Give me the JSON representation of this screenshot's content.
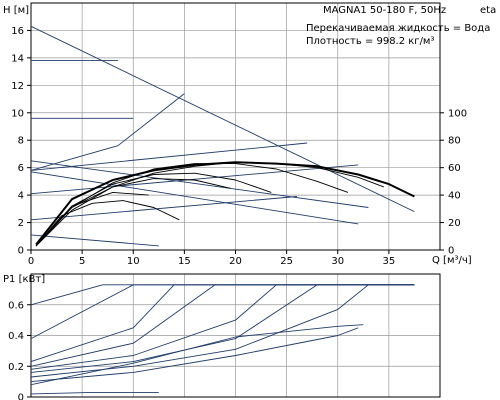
{
  "chart_data": [
    {
      "type": "line",
      "title": "MAGNA1 50-180 F, 50Hz",
      "info": [
        "Перекачиваемая жидкость = Вода",
        "Плотность = 998.2 кг/м³"
      ],
      "xlabel": "Q [м³/ч]",
      "ylabel_left": "H [м]",
      "ylabel_right": "eta [%]",
      "xlim": [
        0,
        40
      ],
      "ylim": [
        0,
        18
      ],
      "ylim_right": [
        0,
        180
      ],
      "xticks": [
        0,
        5,
        10,
        15,
        20,
        25,
        30,
        35
      ],
      "yticks": [
        0,
        2,
        4,
        6,
        8,
        10,
        12,
        14,
        16
      ],
      "yticks_right": [
        0,
        20,
        40,
        60,
        80,
        100
      ],
      "grid": true,
      "colors": {
        "curve": "#1f3d6b",
        "efficiency": "#000000",
        "grid": "#9a9a9a"
      },
      "series": [
        {
          "x": [
            0,
            37.5
          ],
          "y": [
            16.3,
            2.8
          ]
        },
        {
          "x": [
            0,
            8.5
          ],
          "y": [
            13.8,
            13.8
          ]
        },
        {
          "x": [
            0,
            10
          ],
          "y": [
            9.6,
            9.6
          ]
        },
        {
          "x": [
            0,
            33
          ],
          "y": [
            6.5,
            3.1
          ]
        },
        {
          "x": [
            0,
            32
          ],
          "y": [
            5.7,
            1.9
          ]
        },
        {
          "x": [
            0,
            12.5
          ],
          "y": [
            1.1,
            0.3
          ]
        },
        {
          "x": [
            0,
            26
          ],
          "y": [
            2.2,
            3.9
          ]
        },
        {
          "x": [
            0,
            32
          ],
          "y": [
            4.1,
            6.2
          ]
        },
        {
          "x": [
            0,
            27
          ],
          "y": [
            5.8,
            7.8
          ]
        },
        {
          "x": [
            0,
            8.5,
            15
          ],
          "y": [
            5.8,
            7.6,
            11.4
          ]
        },
        {
          "x": [
            0.5,
            4,
            8,
            12,
            16,
            20,
            24,
            28,
            32,
            34.5
          ],
          "y": [
            0.3,
            2.9,
            4.6,
            5.6,
            6.1,
            6.4,
            6.3,
            6.0,
            5.3,
            4.6
          ]
        },
        {
          "x": [
            0.5,
            3,
            6,
            9,
            12,
            14.5
          ],
          "y": [
            0.3,
            2.5,
            3.4,
            3.6,
            3.1,
            2.2
          ]
        },
        {
          "x": [
            0.5,
            4,
            8,
            12,
            16,
            20,
            24,
            28,
            31
          ],
          "y": [
            0.3,
            3.1,
            4.9,
            5.9,
            6.3,
            6.3,
            5.9,
            5.0,
            4.2
          ]
        },
        {
          "x": [
            0.5,
            4,
            8,
            12,
            16,
            19.5
          ],
          "y": [
            0.3,
            3.1,
            4.6,
            5.2,
            5.1,
            4.5
          ]
        },
        {
          "x": [
            0.5,
            4,
            8,
            11.5
          ],
          "y": [
            0.3,
            3.2,
            4.2,
            4.0
          ]
        },
        {
          "x": [
            0.5,
            4,
            8,
            12,
            16,
            20,
            23.5
          ],
          "y": [
            0.3,
            3.2,
            4.8,
            5.5,
            5.6,
            5.1,
            4.2
          ]
        }
      ],
      "series_bold": [
        {
          "x": [
            0.5,
            4,
            8,
            12,
            16,
            20,
            24,
            28,
            32,
            35,
            37.5
          ],
          "y": [
            0.4,
            3.7,
            5.1,
            5.8,
            6.2,
            6.4,
            6.3,
            6.1,
            5.5,
            4.8,
            3.9
          ]
        }
      ]
    },
    {
      "type": "line",
      "ylabel": "P1 [кВт]",
      "xlim": [
        0,
        40
      ],
      "ylim": [
        0,
        0.8
      ],
      "yticks": [
        0,
        0.2,
        0.4,
        0.6
      ],
      "grid": true,
      "series": [
        {
          "x": [
            0,
            7,
            37.5
          ],
          "y": [
            0.6,
            0.73,
            0.73
          ]
        },
        {
          "x": [
            0,
            10,
            37.5
          ],
          "y": [
            0.38,
            0.73,
            0.73
          ]
        },
        {
          "x": [
            0,
            10,
            14,
            37.5
          ],
          "y": [
            0.23,
            0.45,
            0.73,
            0.73
          ]
        },
        {
          "x": [
            0,
            10,
            18,
            37.5
          ],
          "y": [
            0.2,
            0.35,
            0.73,
            0.73
          ]
        },
        {
          "x": [
            0,
            10,
            20,
            24,
            37.5
          ],
          "y": [
            0.18,
            0.27,
            0.5,
            0.73,
            0.73
          ]
        },
        {
          "x": [
            0,
            10,
            20,
            28,
            37.5
          ],
          "y": [
            0.16,
            0.23,
            0.38,
            0.73,
            0.73
          ]
        },
        {
          "x": [
            0,
            10,
            20,
            30,
            33,
            37.5
          ],
          "y": [
            0.13,
            0.2,
            0.31,
            0.57,
            0.73,
            0.73
          ]
        },
        {
          "x": [
            0,
            10,
            20,
            30,
            32
          ],
          "y": [
            0.1,
            0.16,
            0.27,
            0.4,
            0.45
          ]
        },
        {
          "x": [
            0,
            10,
            20,
            30,
            32.5
          ],
          "y": [
            0.08,
            0.22,
            0.39,
            0.46,
            0.47
          ]
        },
        {
          "x": [
            0,
            6,
            12,
            12.5
          ],
          "y": [
            0.02,
            0.03,
            0.03,
            0.03
          ]
        }
      ]
    }
  ]
}
